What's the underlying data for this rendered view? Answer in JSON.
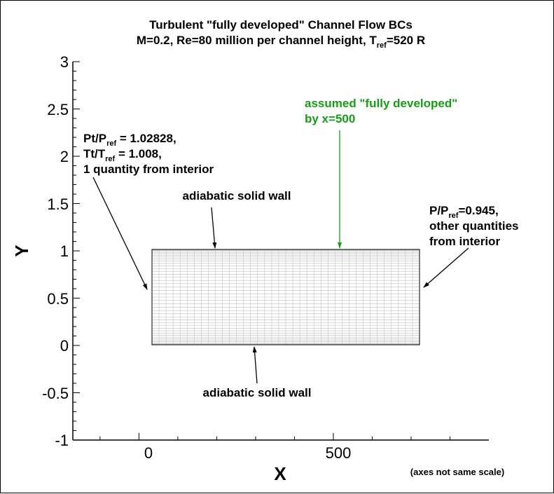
{
  "title": {
    "line1": "Turbulent \"fully developed\" Channel Flow BCs",
    "line2_pre": "M=0.2, Re=80 million per channel height, T",
    "line2_sub": "ref",
    "line2_post": "=520 R"
  },
  "axes": {
    "xlabel": "X",
    "ylabel": "Y",
    "xticks": [
      "0",
      "500"
    ],
    "yticks": [
      "3",
      "2.5",
      "2",
      "1.5",
      "1",
      "0.5",
      "0",
      "-0.5",
      "-1"
    ],
    "scale_note": "(axes not same scale)"
  },
  "annotations": {
    "inlet": {
      "l1_a": "Pt/P",
      "l1_sub": "ref",
      "l1_b": " = 1.02828,",
      "l2_a": "Tt/T",
      "l2_sub": "ref",
      "l2_b": " = 1.008,",
      "l3": "1 quantity from interior"
    },
    "top_wall": "adiabatic solid wall",
    "bottom_wall": "adiabatic solid wall",
    "developed": {
      "l1": "assumed \"fully developed\"",
      "l2": "by x=500",
      "color": "#14a014"
    },
    "outlet": {
      "l1_a": "P/P",
      "l1_sub": "ref",
      "l1_b": "=0.945,",
      "l2": "other quantities",
      "l3": "from interior"
    }
  },
  "chart_data": {
    "type": "diagram",
    "xlim": [
      -170,
      900
    ],
    "ylim": [
      -1,
      3
    ],
    "domain": {
      "x": [
        0,
        720
      ],
      "y": [
        0,
        1
      ]
    },
    "grid": "mesh clustered toward the walls"
  }
}
